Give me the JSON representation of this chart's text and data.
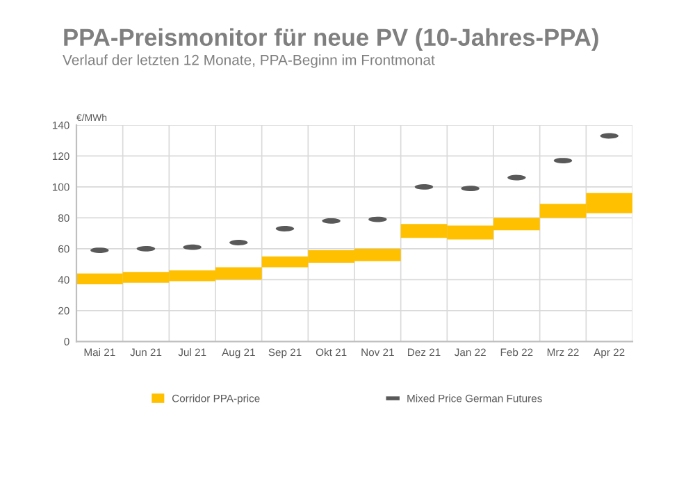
{
  "chart_data": {
    "type": "bar",
    "title": "PPA-Preismonitor für neue PV (10-Jahres-PPA)",
    "subtitle": "Verlauf der letzten 12 Monate, PPA-Beginn im Frontmonat",
    "ylabel": "€/MWh",
    "categories": [
      "Mai 21",
      "Jun 21",
      "Jul 21",
      "Aug 21",
      "Sep 21",
      "Okt 21",
      "Nov 21",
      "Dez 21",
      "Jan 22",
      "Feb 22",
      "Mrz 22",
      "Apr 22"
    ],
    "series": [
      {
        "name": "Corridor PPA-price",
        "color": "#ffc000",
        "base": [
          37,
          38,
          39,
          40,
          48,
          51,
          52,
          67,
          66,
          72,
          80,
          83
        ],
        "values": [
          7,
          7,
          7,
          8,
          7,
          8,
          8,
          9,
          9,
          8,
          9,
          13
        ]
      },
      {
        "name": "Mixed Price German Futures",
        "type": "scatter",
        "color": "#595959",
        "values": [
          59,
          60,
          61,
          64,
          73,
          78,
          79,
          100,
          99,
          106,
          117,
          133
        ]
      }
    ],
    "ylim": [
      0,
      140
    ],
    "yticks": [
      0,
      20,
      40,
      60,
      80,
      100,
      120,
      140
    ],
    "grid": true,
    "legend": "bottom"
  }
}
